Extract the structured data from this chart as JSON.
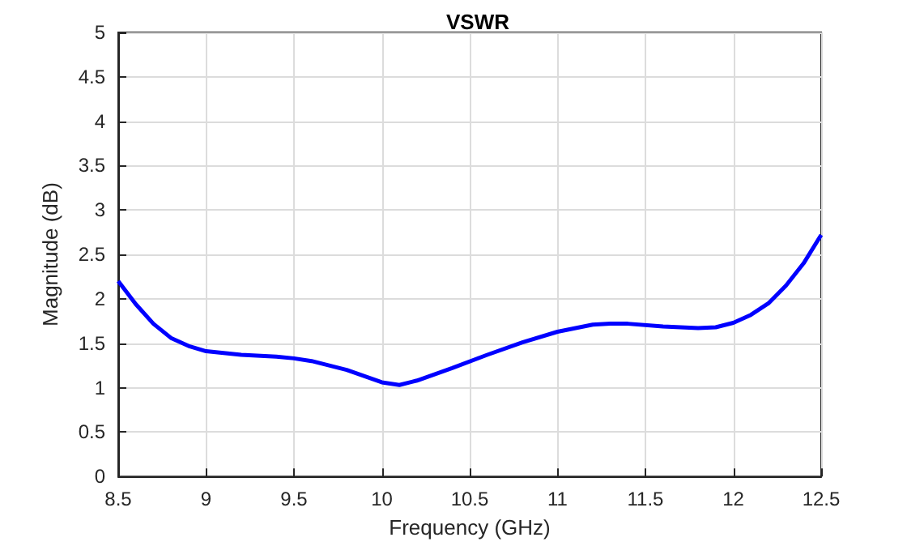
{
  "chart_data": {
    "type": "line",
    "title": "VSWR",
    "xlabel": "Frequency (GHz)",
    "ylabel": "Magnitude (dB)",
    "x": [
      8.5,
      8.6,
      8.7,
      8.8,
      8.9,
      9.0,
      9.2,
      9.4,
      9.5,
      9.6,
      9.8,
      10.0,
      10.1,
      10.2,
      10.4,
      10.6,
      10.8,
      11.0,
      11.2,
      11.3,
      11.4,
      11.6,
      11.8,
      11.9,
      12.0,
      12.1,
      12.2,
      12.3,
      12.4,
      12.5
    ],
    "series": [
      {
        "color": "#0000ff",
        "values": [
          2.2,
          1.94,
          1.72,
          1.56,
          1.47,
          1.41,
          1.37,
          1.35,
          1.33,
          1.3,
          1.2,
          1.06,
          1.03,
          1.08,
          1.22,
          1.37,
          1.51,
          1.63,
          1.71,
          1.72,
          1.72,
          1.69,
          1.67,
          1.68,
          1.73,
          1.82,
          1.95,
          2.15,
          2.4,
          2.72
        ]
      }
    ],
    "xlim": [
      8.5,
      12.5
    ],
    "xticks": [
      8.5,
      9,
      9.5,
      10,
      10.5,
      11,
      11.5,
      12,
      12.5
    ],
    "ylim": [
      0,
      5
    ],
    "yticks": [
      0,
      0.5,
      1,
      1.5,
      2,
      2.5,
      3,
      3.5,
      4,
      4.5,
      5
    ],
    "grid": true,
    "marker": "none",
    "line_style": "solid",
    "legend": false
  }
}
